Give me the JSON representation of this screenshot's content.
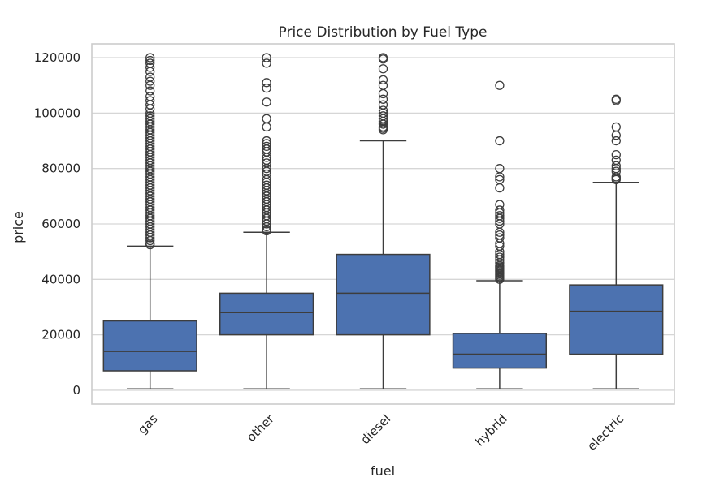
{
  "chart_data": {
    "type": "box",
    "title": "Price Distribution by Fuel Type",
    "xlabel": "fuel",
    "ylabel": "price",
    "ylim": [
      -5000,
      125000
    ],
    "yticks": [
      0,
      20000,
      40000,
      60000,
      80000,
      100000,
      120000
    ],
    "ytick_labels": [
      "0",
      "20000",
      "40000",
      "60000",
      "80000",
      "100000",
      "120000"
    ],
    "grid": true,
    "box_color": "#4c72b0",
    "line_color": "#3d3d3d",
    "categories": [
      "gas",
      "other",
      "diesel",
      "hybrid",
      "electric"
    ],
    "boxes": [
      {
        "category": "gas",
        "whisker_low": 500,
        "q1": 7000,
        "median": 14000,
        "q3": 25000,
        "whisker_high": 52000,
        "outliers": [
          120000,
          119000,
          118000,
          116500,
          115000,
          113000,
          111500,
          110000,
          108000,
          106000,
          104500,
          103000,
          101500,
          100000,
          99000,
          98000,
          97000,
          96000,
          95000,
          94000,
          93000,
          92000,
          91000,
          90000,
          89000,
          88000,
          87000,
          86000,
          85000,
          84000,
          83000,
          82000,
          81000,
          80000,
          79000,
          78000,
          77000,
          76000,
          75000,
          74000,
          73000,
          72000,
          71000,
          70000,
          69000,
          68000,
          67000,
          66000,
          65000,
          64000,
          63000,
          62000,
          61000,
          60000,
          59000,
          58000,
          57000,
          56000,
          55000,
          54000,
          53000,
          52500
        ]
      },
      {
        "category": "other",
        "whisker_low": 500,
        "q1": 20000,
        "median": 28000,
        "q3": 35000,
        "whisker_high": 57000,
        "outliers": [
          120000,
          118000,
          111000,
          109000,
          104000,
          98000,
          95000,
          90000,
          89000,
          88000,
          87000,
          86000,
          84000,
          83000,
          82000,
          80000,
          79000,
          78000,
          76000,
          75000,
          74000,
          73000,
          72000,
          71000,
          70000,
          69000,
          68000,
          67000,
          66000,
          65000,
          64000,
          63000,
          62000,
          61000,
          60000,
          59000,
          58000,
          57500
        ]
      },
      {
        "category": "diesel",
        "whisker_low": 500,
        "q1": 20000,
        "median": 35000,
        "q3": 49000,
        "whisker_high": 90000,
        "outliers": [
          120000,
          119500,
          116000,
          112000,
          110000,
          107000,
          105000,
          103000,
          101000,
          100000,
          99000,
          98000,
          97000,
          96000,
          95000,
          94500,
          94000
        ]
      },
      {
        "category": "hybrid",
        "whisker_low": 500,
        "q1": 8000,
        "median": 13000,
        "q3": 20500,
        "whisker_high": 39500,
        "outliers": [
          110000,
          90000,
          80000,
          77000,
          76000,
          73000,
          67000,
          65000,
          64000,
          63000,
          62000,
          61000,
          60000,
          57000,
          56000,
          55000,
          53000,
          52000,
          50000,
          49000,
          48000,
          47000,
          46000,
          45000,
          44500,
          44000,
          43500,
          43000,
          42500,
          42000,
          41500,
          41000,
          40500,
          40000
        ]
      },
      {
        "category": "electric",
        "whisker_low": 500,
        "q1": 13000,
        "median": 28500,
        "q3": 38000,
        "whisker_high": 75000,
        "outliers": [
          105000,
          104500,
          95000,
          92000,
          90000,
          85000,
          83000,
          81000,
          80000,
          79000,
          77000,
          76500,
          76000
        ]
      }
    ]
  }
}
